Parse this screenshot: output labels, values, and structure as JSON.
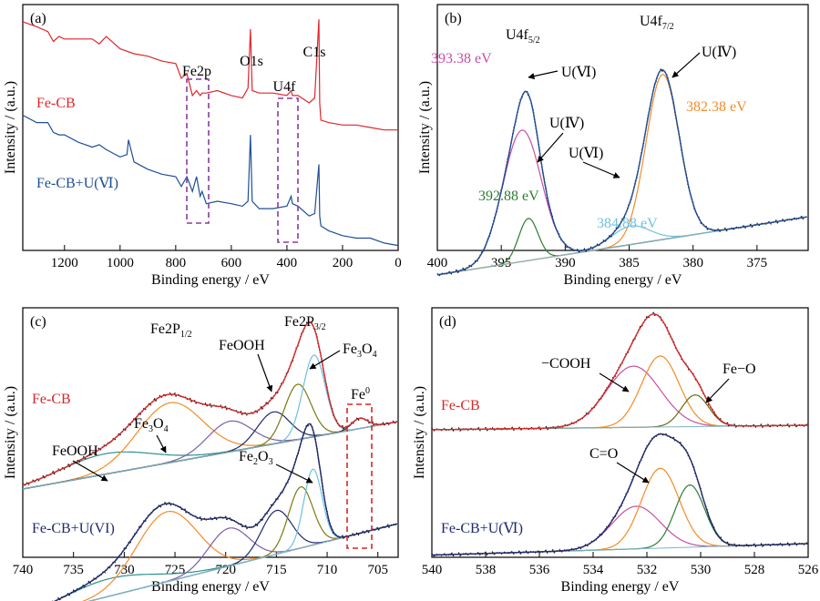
{
  "chart_data": [
    {
      "panel": "(a)",
      "type": "line",
      "xlabel": "Binding energy / eV",
      "ylabel": "Intensity / (a.u.)",
      "xlim": [
        1350,
        0
      ],
      "xticks": [
        1200,
        1000,
        800,
        600,
        400,
        200,
        0
      ],
      "series": [
        {
          "name": "Fe-CB",
          "color": "#e0262b",
          "x": [
            1350,
            1300,
            1260,
            1240,
            1220,
            1200,
            1150,
            1100,
            1075,
            1050,
            1000,
            950,
            900,
            850,
            800,
            780,
            760,
            740,
            725,
            712,
            705,
            690,
            650,
            600,
            560,
            540,
            531,
            525,
            500,
            450,
            400,
            385,
            380,
            360,
            320,
            300,
            285,
            282,
            278,
            250,
            200,
            150,
            100,
            50,
            0
          ],
          "y": [
            0.93,
            0.91,
            0.89,
            0.85,
            0.87,
            0.86,
            0.86,
            0.86,
            0.84,
            0.87,
            0.82,
            0.8,
            0.79,
            0.77,
            0.76,
            0.7,
            0.72,
            0.63,
            0.65,
            0.63,
            0.64,
            0.64,
            0.65,
            0.63,
            0.62,
            0.66,
            0.9,
            0.65,
            0.64,
            0.64,
            0.63,
            0.65,
            0.63,
            0.63,
            0.6,
            0.62,
            0.94,
            0.6,
            0.53,
            0.52,
            0.51,
            0.51,
            0.5,
            0.49,
            0.49
          ]
        },
        {
          "name": "Fe-CB+U(Ⅵ)",
          "color": "#1f4e96",
          "x": [
            1350,
            1300,
            1260,
            1240,
            1220,
            1200,
            1150,
            1100,
            1075,
            1050,
            1000,
            975,
            970,
            950,
            900,
            850,
            800,
            780,
            760,
            740,
            725,
            712,
            705,
            690,
            650,
            600,
            560,
            540,
            531,
            525,
            500,
            450,
            400,
            385,
            380,
            360,
            320,
            300,
            285,
            282,
            278,
            250,
            200,
            150,
            100,
            50,
            0
          ],
          "y": [
            0.55,
            0.52,
            0.52,
            0.48,
            0.47,
            0.47,
            0.44,
            0.42,
            0.43,
            0.41,
            0.38,
            0.39,
            0.45,
            0.36,
            0.33,
            0.31,
            0.3,
            0.26,
            0.3,
            0.24,
            0.3,
            0.22,
            0.24,
            0.19,
            0.2,
            0.19,
            0.18,
            0.2,
            0.47,
            0.2,
            0.17,
            0.17,
            0.18,
            0.22,
            0.19,
            0.18,
            0.14,
            0.15,
            0.35,
            0.14,
            0.1,
            0.08,
            0.06,
            0.05,
            0.05,
            0.03,
            0.02
          ]
        }
      ],
      "annotations": [
        {
          "text": "Fe2p",
          "x": 718
        },
        {
          "text": "O1s",
          "x": 531
        },
        {
          "text": "U4f",
          "x": 390
        },
        {
          "text": "C1s",
          "x": 285
        }
      ]
    },
    {
      "panel": "(b)",
      "type": "line",
      "xlabel": "Binding energy / eV",
      "ylabel": "Intensity / (a.u.)",
      "xlim": [
        400,
        371
      ],
      "xticks": [
        400,
        395,
        390,
        385,
        380,
        375
      ],
      "peaks": [
        {
          "label": "393.38 eV",
          "center": 393.38,
          "height": 0.78,
          "width": 1.5,
          "color": "#c84fa0"
        },
        {
          "label": "392.88 eV",
          "center": 392.88,
          "height": 0.25,
          "width": 0.75,
          "color": "#2e7d32"
        },
        {
          "label": "384.88 eV",
          "center": 384.88,
          "height": 0.11,
          "width": 1.5,
          "color": "#6fc1df"
        },
        {
          "label": "382.38 eV",
          "center": 382.38,
          "height": 0.98,
          "width": 1.3,
          "color": "#f28c28"
        }
      ],
      "annotations": [
        {
          "text": "U(Ⅵ)",
          "x": 390.5
        },
        {
          "text": "U(Ⅳ)",
          "x": 390.5
        },
        {
          "text": "U(Ⅵ)",
          "x": 385.8
        },
        {
          "text": "U(Ⅳ)",
          "x": 379.8
        }
      ]
    },
    {
      "panel": "(c)",
      "type": "line",
      "xlabel": "Binding energy / eV",
      "ylabel": "Intensity / (a.u.)",
      "xlim": [
        740,
        703
      ],
      "xticks": [
        740,
        735,
        730,
        725,
        720,
        715,
        710,
        705
      ],
      "series": [
        {
          "name": "Fe-CB",
          "peaks": [
            {
              "center": 731.8,
              "height": 0.14,
              "width": 4.5,
              "color": "#2f8f8f"
            },
            {
              "center": 725.5,
              "height": 0.41,
              "width": 3.2,
              "color": "#f28c28"
            },
            {
              "center": 719.6,
              "height": 0.21,
              "width": 2.2,
              "color": "#7b5ea7"
            },
            {
              "center": 715.3,
              "height": 0.22,
              "width": 1.6,
              "color": "#1f2a6e"
            },
            {
              "center": 712.9,
              "height": 0.38,
              "width": 1.3,
              "color": "#7a7a10"
            },
            {
              "center": 711.3,
              "height": 0.56,
              "width": 1.1,
              "color": "#6fc1df"
            },
            {
              "center": 706.8,
              "height": 0.07,
              "width": 0.8,
              "color": "#2b2b2b"
            }
          ]
        },
        {
          "name": "Fe-CB+U(VI)",
          "peaks": [
            {
              "center": 731.5,
              "height": 0.12,
              "width": 4.5,
              "color": "#2f8f8f"
            },
            {
              "center": 725.8,
              "height": 0.48,
              "width": 3.0,
              "color": "#f28c28"
            },
            {
              "center": 719.7,
              "height": 0.26,
              "width": 2.0,
              "color": "#7b5ea7"
            },
            {
              "center": 715.0,
              "height": 0.3,
              "width": 1.5,
              "color": "#1f2a6e"
            },
            {
              "center": 712.6,
              "height": 0.42,
              "width": 1.2,
              "color": "#7a7a10"
            },
            {
              "center": 711.4,
              "height": 0.52,
              "width": 0.9,
              "color": "#6fc1df"
            }
          ]
        }
      ],
      "annotations": [
        {
          "text": "Fe2P",
          "sub": "1/2",
          "x": 725.5
        },
        {
          "text": "Fe2P",
          "sub": "3/2",
          "x": 711.5
        },
        {
          "text": "FeOOH",
          "x": 717.5
        },
        {
          "text": "Fe",
          "sub": "3",
          "text2": "O",
          "sub2": "4",
          "x": 708.5
        },
        {
          "text": "Fe",
          "sup": "0",
          "x": 706.5
        },
        {
          "text": "Fe",
          "sub": "3",
          "text2": "O",
          "sub2": "4",
          "x": 727
        },
        {
          "text": "FeOOH",
          "x": 734
        },
        {
          "text": "Fe",
          "sub": "2",
          "text2": "O",
          "sub2": "3",
          "x": 714
        }
      ]
    },
    {
      "panel": "(d)",
      "type": "line",
      "xlabel": "Binding energy / eV",
      "ylabel": "Intensity / (a.u.)",
      "xlim": [
        540,
        526
      ],
      "xticks": [
        540,
        538,
        536,
        534,
        532,
        530,
        528,
        526
      ],
      "series": [
        {
          "name": "Fe-CB",
          "peaks": [
            {
              "center": 532.5,
              "height": 0.56,
              "width": 1.0,
              "color": "#c84fa0"
            },
            {
              "center": 531.5,
              "height": 0.65,
              "width": 0.7,
              "color": "#f28c28"
            },
            {
              "center": 530.2,
              "height": 0.29,
              "width": 0.5,
              "color": "#6b6b10"
            }
          ]
        },
        {
          "name": "Fe-CB+U(Ⅵ)",
          "peaks": [
            {
              "center": 532.4,
              "height": 0.39,
              "width": 0.9,
              "color": "#c84fa0"
            },
            {
              "center": 531.5,
              "height": 0.73,
              "width": 0.7,
              "color": "#f28c28"
            },
            {
              "center": 530.4,
              "height": 0.57,
              "width": 0.55,
              "color": "#2e7d32"
            }
          ]
        }
      ],
      "annotations": [
        {
          "text": "−COOH",
          "x": 535.2
        },
        {
          "text": "Fe−O",
          "x": 528.8
        },
        {
          "text": "C=O",
          "x": 533.2
        }
      ]
    }
  ]
}
